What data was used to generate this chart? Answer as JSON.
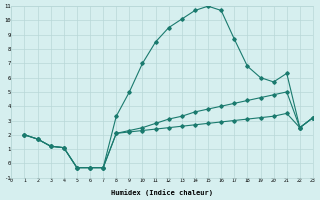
{
  "xlabel": "Humidex (Indice chaleur)",
  "background_color": "#d6efef",
  "grid_color": "#b8d8d8",
  "line_color": "#1a7a6e",
  "xlim": [
    0,
    23
  ],
  "ylim": [
    -1,
    11
  ],
  "xticks": [
    0,
    1,
    2,
    3,
    4,
    5,
    6,
    7,
    8,
    9,
    10,
    11,
    12,
    13,
    14,
    15,
    16,
    17,
    18,
    19,
    20,
    21,
    22,
    23
  ],
  "yticks": [
    -1,
    0,
    1,
    2,
    3,
    4,
    5,
    6,
    7,
    8,
    9,
    10,
    11
  ],
  "lines": [
    {
      "x": [
        1,
        2,
        3,
        4,
        5,
        6,
        7,
        8,
        9,
        10,
        11,
        12,
        13,
        14,
        15,
        16,
        17,
        18,
        19,
        20,
        21,
        22,
        23
      ],
      "y": [
        2.0,
        1.7,
        1.2,
        1.1,
        -0.3,
        -0.3,
        -0.3,
        3.3,
        5.0,
        7.0,
        8.5,
        9.5,
        10.1,
        10.7,
        11.0,
        10.7,
        8.7,
        6.8,
        6.0,
        5.7,
        6.3,
        2.5,
        3.2
      ]
    },
    {
      "x": [
        1,
        2,
        3,
        4,
        5,
        6,
        7,
        8,
        9,
        10,
        11,
        12,
        13,
        14,
        15,
        16,
        17,
        18,
        19,
        20,
        21,
        22,
        23
      ],
      "y": [
        2.0,
        1.7,
        1.2,
        1.1,
        -0.3,
        -0.3,
        -0.3,
        2.1,
        2.3,
        2.5,
        2.8,
        3.1,
        3.3,
        3.6,
        3.8,
        4.0,
        4.2,
        4.4,
        4.6,
        4.8,
        5.0,
        2.5,
        3.2
      ]
    },
    {
      "x": [
        1,
        2,
        3,
        4,
        5,
        6,
        7,
        8,
        9,
        10,
        11,
        12,
        13,
        14,
        15,
        16,
        17,
        18,
        19,
        20,
        21,
        22,
        23
      ],
      "y": [
        2.0,
        1.7,
        1.2,
        1.1,
        -0.3,
        -0.3,
        -0.3,
        2.1,
        2.2,
        2.3,
        2.4,
        2.5,
        2.6,
        2.7,
        2.8,
        2.9,
        3.0,
        3.1,
        3.2,
        3.3,
        3.5,
        2.5,
        3.2
      ]
    }
  ]
}
